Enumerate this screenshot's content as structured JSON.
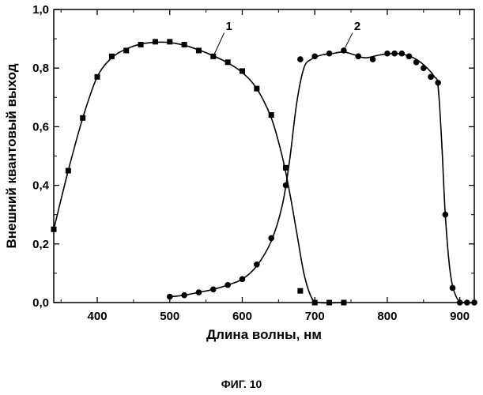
{
  "figure_caption": "ФИГ. 10",
  "chart_data": {
    "type": "scatter",
    "title": "",
    "xlabel": "Длина волны, нм",
    "ylabel": "Внешний квантовый выход",
    "xlim": [
      340,
      920
    ],
    "ylim": [
      0.0,
      1.0
    ],
    "x_ticks": [
      {
        "value": 400,
        "label": "400"
      },
      {
        "value": 500,
        "label": "500"
      },
      {
        "value": 600,
        "label": "600"
      },
      {
        "value": 700,
        "label": "700"
      },
      {
        "value": 800,
        "label": "800"
      },
      {
        "value": 900,
        "label": "900"
      }
    ],
    "y_ticks": [
      {
        "value": 0.0,
        "label": "0,0"
      },
      {
        "value": 0.2,
        "label": "0,2"
      },
      {
        "value": 0.4,
        "label": "0,4"
      },
      {
        "value": 0.6,
        "label": "0,6"
      },
      {
        "value": 0.8,
        "label": "0,8"
      },
      {
        "value": 1.0,
        "label": "1,0"
      }
    ],
    "grid": false,
    "series": [
      {
        "label": "1",
        "marker": "square",
        "points": [
          [
            340,
            0.25
          ],
          [
            360,
            0.45
          ],
          [
            380,
            0.63
          ],
          [
            400,
            0.77
          ],
          [
            420,
            0.84
          ],
          [
            440,
            0.86
          ],
          [
            460,
            0.88
          ],
          [
            480,
            0.89
          ],
          [
            500,
            0.89
          ],
          [
            520,
            0.88
          ],
          [
            540,
            0.86
          ],
          [
            560,
            0.84
          ],
          [
            580,
            0.82
          ],
          [
            600,
            0.79
          ],
          [
            620,
            0.73
          ],
          [
            640,
            0.64
          ],
          [
            660,
            0.46
          ],
          [
            680,
            0.04
          ],
          [
            700,
            0.0
          ],
          [
            720,
            0.0
          ],
          [
            740,
            0.0
          ]
        ],
        "curve": [
          [
            340,
            0.25
          ],
          [
            360,
            0.45
          ],
          [
            380,
            0.63
          ],
          [
            400,
            0.77
          ],
          [
            420,
            0.835
          ],
          [
            440,
            0.865
          ],
          [
            460,
            0.882
          ],
          [
            480,
            0.888
          ],
          [
            500,
            0.887
          ],
          [
            520,
            0.878
          ],
          [
            540,
            0.862
          ],
          [
            560,
            0.842
          ],
          [
            580,
            0.818
          ],
          [
            600,
            0.785
          ],
          [
            620,
            0.73
          ],
          [
            640,
            0.63
          ],
          [
            655,
            0.5
          ],
          [
            665,
            0.38
          ],
          [
            675,
            0.24
          ],
          [
            685,
            0.1
          ],
          [
            695,
            0.02
          ],
          [
            705,
            0.0
          ],
          [
            740,
            0.0
          ]
        ]
      },
      {
        "label": "2",
        "marker": "circle",
        "points": [
          [
            500,
            0.02
          ],
          [
            520,
            0.025
          ],
          [
            540,
            0.035
          ],
          [
            560,
            0.045
          ],
          [
            580,
            0.06
          ],
          [
            600,
            0.08
          ],
          [
            620,
            0.13
          ],
          [
            640,
            0.22
          ],
          [
            660,
            0.4
          ],
          [
            680,
            0.83
          ],
          [
            700,
            0.84
          ],
          [
            720,
            0.85
          ],
          [
            740,
            0.86
          ],
          [
            760,
            0.84
          ],
          [
            780,
            0.83
          ],
          [
            800,
            0.85
          ],
          [
            810,
            0.85
          ],
          [
            820,
            0.85
          ],
          [
            830,
            0.84
          ],
          [
            840,
            0.82
          ],
          [
            850,
            0.8
          ],
          [
            860,
            0.77
          ],
          [
            870,
            0.75
          ],
          [
            880,
            0.3
          ],
          [
            890,
            0.05
          ],
          [
            900,
            0.0
          ],
          [
            910,
            0.0
          ],
          [
            920,
            0.0
          ]
        ],
        "curve": [
          [
            500,
            0.02
          ],
          [
            520,
            0.025
          ],
          [
            540,
            0.035
          ],
          [
            560,
            0.045
          ],
          [
            580,
            0.06
          ],
          [
            600,
            0.08
          ],
          [
            620,
            0.125
          ],
          [
            640,
            0.21
          ],
          [
            655,
            0.33
          ],
          [
            665,
            0.48
          ],
          [
            675,
            0.68
          ],
          [
            685,
            0.8
          ],
          [
            695,
            0.83
          ],
          [
            710,
            0.845
          ],
          [
            725,
            0.85
          ],
          [
            740,
            0.855
          ],
          [
            755,
            0.845
          ],
          [
            770,
            0.835
          ],
          [
            790,
            0.845
          ],
          [
            810,
            0.85
          ],
          [
            825,
            0.845
          ],
          [
            840,
            0.83
          ],
          [
            855,
            0.8
          ],
          [
            865,
            0.77
          ],
          [
            870,
            0.74
          ],
          [
            875,
            0.55
          ],
          [
            880,
            0.3
          ],
          [
            887,
            0.1
          ],
          [
            895,
            0.02
          ],
          [
            905,
            0.0
          ],
          [
            920,
            0.0
          ]
        ]
      }
    ]
  }
}
